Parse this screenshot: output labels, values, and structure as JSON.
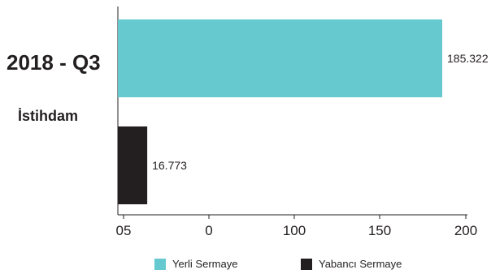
{
  "chart_data": {
    "type": "bar",
    "orientation": "horizontal",
    "category": "2018 - Q3",
    "subtitle": "İstihdam",
    "series": [
      {
        "name": "Yerli Sermaye",
        "value": 185.322,
        "value_label": "185.322",
        "color": "#66c9d0"
      },
      {
        "name": "Yabancı Sermaye",
        "value": 16.773,
        "value_label": "16.773",
        "color": "#231f20"
      }
    ],
    "x_ticks": [
      "05",
      "0",
      "100",
      "150",
      "200"
    ],
    "xlim": [
      0,
      200
    ],
    "grid": false,
    "legend_position": "bottom"
  }
}
